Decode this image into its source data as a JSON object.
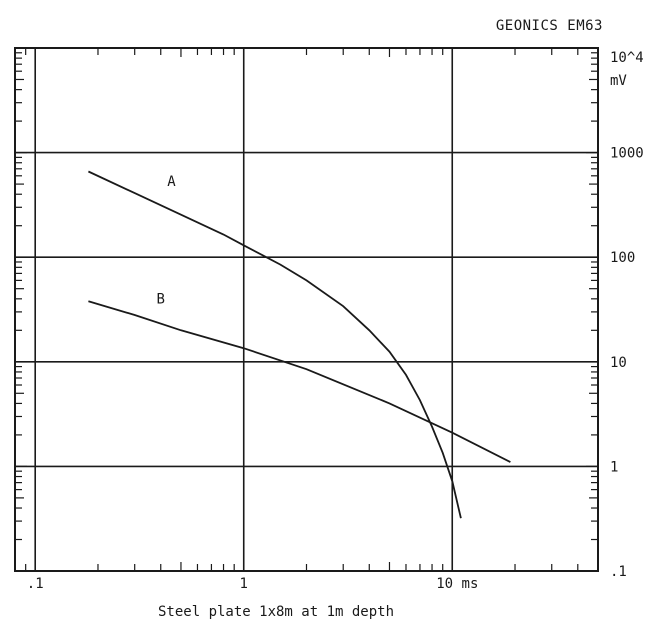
{
  "chart_data": {
    "type": "line",
    "title": "GEONICS EM63",
    "xlabel": "Steel plate 1x8m at 1m depth",
    "ylabel_line1": "10^4",
    "ylabel_line2": "mV",
    "x_scale": "log",
    "y_scale": "log",
    "xlim": [
      0.08,
      50
    ],
    "ylim": [
      0.1,
      10000
    ],
    "x_tick_labels": [
      {
        "value": 0.1,
        "label": ".1"
      },
      {
        "value": 1,
        "label": "1"
      },
      {
        "value": 10,
        "label": "10 ms"
      }
    ],
    "y_tick_labels": [
      {
        "value": 0.1,
        "label": ".1"
      },
      {
        "value": 1,
        "label": "1"
      },
      {
        "value": 10,
        "label": "10"
      },
      {
        "value": 100,
        "label": "100"
      },
      {
        "value": 1000,
        "label": "1000"
      }
    ],
    "grid": true,
    "series": [
      {
        "name": "A",
        "x": [
          0.18,
          0.3,
          0.5,
          0.8,
          1.0,
          1.5,
          2.0,
          3.0,
          4.0,
          5.0,
          6.0,
          7.0,
          8.0,
          9.0,
          10.0,
          11.0
        ],
        "y": [
          660,
          410,
          255,
          165,
          130,
          85,
          60,
          34,
          20,
          12.5,
          7.5,
          4.3,
          2.4,
          1.35,
          0.72,
          0.32
        ]
      },
      {
        "name": "B",
        "x": [
          0.18,
          0.3,
          0.5,
          1.0,
          2.0,
          5.0,
          10.0,
          19.0
        ],
        "y": [
          38,
          28,
          20,
          13.5,
          8.5,
          4.0,
          2.1,
          1.1
        ]
      }
    ]
  }
}
